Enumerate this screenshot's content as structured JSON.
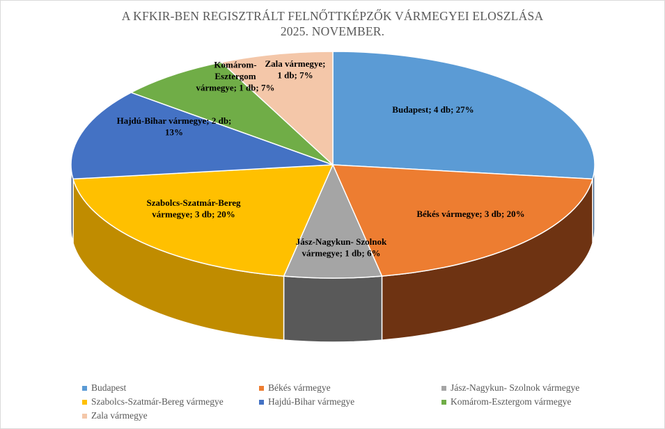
{
  "chart_data": {
    "type": "pie",
    "style": "3d",
    "title_lines": [
      "A KFKIR-BEN REGISZTRÁLT FELNŐTTKÉPZŐK VÁRMEGYEI ELOSZLÁSA",
      "2025. NOVEMBER."
    ],
    "slices": [
      {
        "name": "Budapest",
        "value": 4,
        "percent": 27,
        "color": "#5B9BD5",
        "side_color": "#2E5A87",
        "label_lines": [
          "Budapest;  4 db; 27%"
        ]
      },
      {
        "name": "Békés vármegye",
        "value": 3,
        "percent": 20,
        "color": "#ED7D31",
        "side_color": "#6E3312",
        "label_lines": [
          "Békés vármegye;  3 db; 20%"
        ]
      },
      {
        "name": "Jász-Nagykun- Szolnok  vármegye",
        "value": 1,
        "percent": 6,
        "color": "#A5A5A5",
        "side_color": "#595959",
        "label_lines": [
          "Jász-Nagykun- Szolnok",
          "vármegye;  1 db; 6%"
        ]
      },
      {
        "name": "Szabolcs-Szatmár-Bereg vármegye",
        "value": 3,
        "percent": 20,
        "color": "#FFC000",
        "side_color": "#C08C00",
        "label_lines": [
          "Szabolcs-Szatmár-Bereg",
          "vármegye;  3 db; 20%"
        ]
      },
      {
        "name": "Hajdú-Bihar vármegye",
        "value": 2,
        "percent": 13,
        "color": "#4472C4",
        "side_color": "#203F73",
        "label_lines": [
          "Hajdú-Bihar vármegye;  2 db;",
          "13%"
        ]
      },
      {
        "name": "Komárom-Esztergom vármegye",
        "value": 1,
        "percent": 7,
        "color": "#70AD47",
        "side_color": "#3E6627",
        "label_lines": [
          "Komárom-",
          "Esztergom",
          "vármegye;  1 db; 7%"
        ]
      },
      {
        "name": "Zala vármegye",
        "value": 1,
        "percent": 7,
        "color": "#F4C7A9",
        "side_color": "#B08868",
        "label_lines": [
          "Zala vármegye;",
          "1 db; 7%"
        ]
      }
    ],
    "legend": {
      "placement": "bottom",
      "entries": [
        "Budapest",
        "Békés vármegye",
        "Jász-Nagykun- Szolnok  vármegye",
        "Szabolcs-Szatmár-Bereg vármegye",
        "Hajdú-Bihar vármegye",
        "Komárom-Esztergom vármegye",
        "Zala vármegye"
      ]
    }
  }
}
